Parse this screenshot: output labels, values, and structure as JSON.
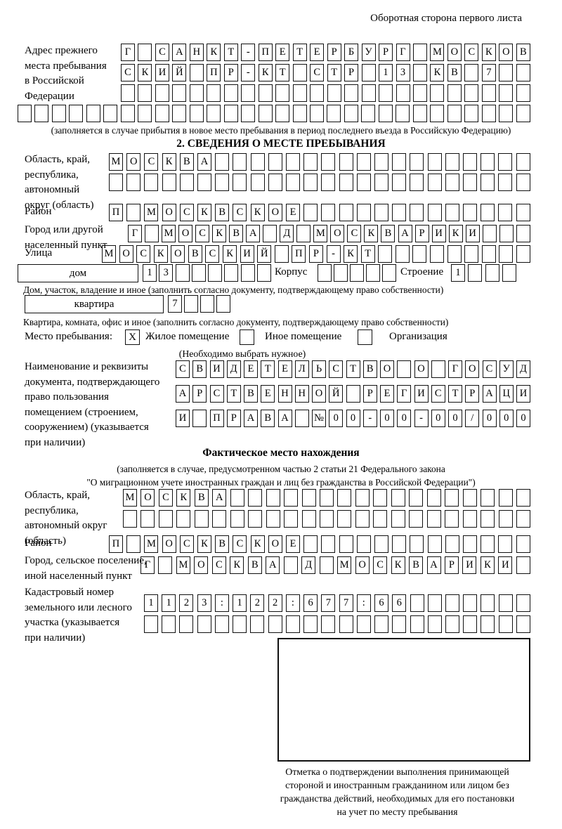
{
  "header": {
    "note": "Оборотная сторона первого листа"
  },
  "prev_address": {
    "label": "Адрес прежнего\nместа пребывания\nв Российской\nФедерации",
    "row1": {
      "text": "Г САНКТ-ПЕТЕРБУРГ МОСКОВ",
      "cells": 24
    },
    "row2": {
      "text": "СКИЙ ПР-КТ СТР 13 КВ 7",
      "cells": 24
    },
    "row3": {
      "text": "",
      "cells": 24
    },
    "row4": {
      "text": "",
      "cells": 30
    },
    "caption": "(заполняется в случае прибытия в новое место пребывания в период последнего въезда в Российскую Федерацию)"
  },
  "section2": {
    "title": "2. СВЕДЕНИЯ О МЕСТЕ ПРЕБЫВАНИЯ",
    "region": {
      "label": "Область, край,\nреспублика,\nавтономный\nокруг (область)",
      "row1": {
        "text": "МОСКВА",
        "cells": 24
      },
      "row2": {
        "text": "",
        "cells": 24
      }
    },
    "district": {
      "label": "Район",
      "row": {
        "text": "П МОСКВСКОЕ",
        "cells": 24
      }
    },
    "city": {
      "label": "Город или другой\nнаселенный пункт",
      "row": {
        "text": "Г МОСКВА Д МОСКВАРИКИ",
        "cells": 24
      }
    },
    "street": {
      "label": "Улица",
      "row": {
        "text": "МОСКОВСКИЙ ПР-КТ",
        "cells": 25
      }
    },
    "house": {
      "box_label": "дом",
      "row": {
        "text": "13",
        "cells": 8
      },
      "korpus_label": "Корпус",
      "korpus_row": {
        "text": "",
        "cells": 5
      },
      "stroenie_label": "Строение",
      "stroenie_row": {
        "text": "1",
        "cells": 4
      },
      "caption": "Дом, участок, владение и иное (заполнить согласно документу, подтверждающему право собственности)"
    },
    "apartment": {
      "box_label": "квартира",
      "row": {
        "text": "7",
        "cells": 4
      },
      "caption": "Квартира, комната, офис и иное (заполнить согласно документу, подтверждающему право собственности)"
    },
    "stay_type": {
      "label": "Место пребывания:",
      "opt1": {
        "mark": "X",
        "label": "Жилое помещение"
      },
      "opt2": {
        "mark": "",
        "label": "Иное помещение"
      },
      "opt3": {
        "mark": "",
        "label": "Организация"
      },
      "note": "(Необходимо выбрать нужное)"
    },
    "doc": {
      "label": "Наименование и реквизиты\nдокумента, подтверждающего\nправо пользования\nпомещением (строением,\nсооружением) (указывается\nпри наличии)",
      "row1": {
        "text": "СВИДЕТЕЛЬСТВО О ГОСУД",
        "cells": 21
      },
      "row2": {
        "text": "АРСТВЕННОЙ РЕГИСТРАЦИ",
        "cells": 21
      },
      "row3": {
        "text": "И ПРАВА №00-00-00/000",
        "cells": 21
      }
    }
  },
  "actual_location": {
    "title": "Фактическое место нахождения",
    "caption1": "(заполняется в случае, предусмотренном частью 2 статьи 21 Федерального закона",
    "caption2": "\"О миграционном учете иностранных граждан и лиц без гражданства в Российской Федерации\")",
    "region": {
      "label": "Область, край,\nреспублика,\nавтономный округ\n(область)",
      "row1": {
        "text": "МОСКВА",
        "cells": 23
      },
      "row2": {
        "text": "",
        "cells": 23
      }
    },
    "district": {
      "label": "Район",
      "row": {
        "text": "П МОСКВСКОЕ",
        "cells": 24
      }
    },
    "city": {
      "label": "Город, сельское поселение,\nиной населенный пункт",
      "row": {
        "text": "Г МОСКВА Д МОСКВАРИКИ",
        "cells": 22
      }
    },
    "cadastre": {
      "label": "Кадастровый номер\nземельного или лесного\nучастка (указывается\nпри наличии)",
      "row1": {
        "text": "1123:122:677:66",
        "cells": 22
      },
      "row2": {
        "text": "",
        "cells": 22
      }
    },
    "mark_caption": "Отметка о подтверждении выполнения принимающей\nстороной и иностранным гражданином или лицом без\nгражданства действий, необходимых для его постановки\nна учет по месту пребывания"
  }
}
